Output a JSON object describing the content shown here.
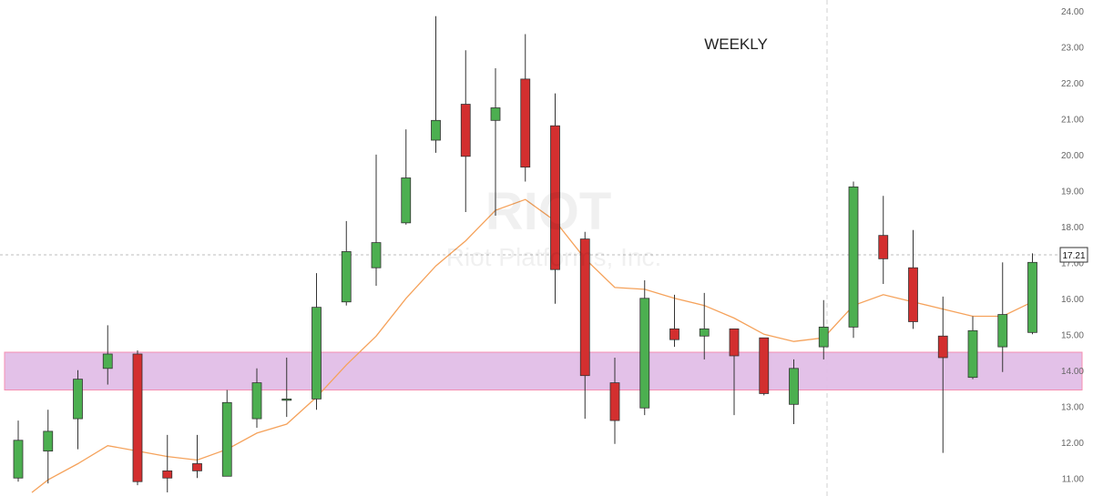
{
  "chart_data": {
    "type": "candlestick",
    "title": "WEEKLY",
    "watermark": {
      "ticker": "RIOT",
      "name": "Riot Platforms, Inc."
    },
    "ylim": [
      10.5,
      24.3
    ],
    "y_ticks": [
      "11.00",
      "12.00",
      "13.00",
      "14.00",
      "15.00",
      "16.00",
      "17.00",
      "18.00",
      "19.00",
      "20.00",
      "21.00",
      "22.00",
      "23.00",
      "24.00"
    ],
    "current_price": "17.21",
    "zone": {
      "low": 13.45,
      "high": 14.5
    },
    "colors": {
      "up": "#4caf50",
      "down": "#d32f2f",
      "ma": "#f5a25b",
      "zone": "#e1bee7",
      "zone_border": "#f48fb1",
      "price_line": "#bdbdbd"
    },
    "candles": [
      {
        "open": 11.0,
        "close": 12.05,
        "high": 12.6,
        "low": 10.9
      },
      {
        "open": 11.75,
        "close": 12.3,
        "high": 12.9,
        "low": 10.85
      },
      {
        "open": 12.65,
        "close": 13.75,
        "high": 14.0,
        "low": 11.8
      },
      {
        "open": 14.05,
        "close": 14.45,
        "high": 15.25,
        "low": 13.6
      },
      {
        "open": 14.45,
        "close": 10.9,
        "high": 14.55,
        "low": 10.8
      },
      {
        "open": 11.2,
        "close": 11.0,
        "high": 12.2,
        "low": 10.6
      },
      {
        "open": 11.4,
        "close": 11.2,
        "high": 12.2,
        "low": 11.0
      },
      {
        "open": 11.05,
        "close": 13.1,
        "high": 13.45,
        "low": 11.05
      },
      {
        "open": 12.65,
        "close": 13.65,
        "high": 14.05,
        "low": 12.4
      },
      {
        "open": 13.2,
        "close": 13.2,
        "high": 14.35,
        "low": 12.7
      },
      {
        "open": 13.2,
        "close": 15.75,
        "high": 16.7,
        "low": 12.9
      },
      {
        "open": 15.9,
        "close": 17.3,
        "high": 18.15,
        "low": 15.8
      },
      {
        "open": 16.85,
        "close": 17.55,
        "high": 20.0,
        "low": 16.35
      },
      {
        "open": 18.1,
        "close": 19.35,
        "high": 20.7,
        "low": 18.05
      },
      {
        "open": 20.4,
        "close": 20.95,
        "high": 23.85,
        "low": 20.05
      },
      {
        "open": 21.4,
        "close": 19.95,
        "high": 22.9,
        "low": 18.4
      },
      {
        "open": 20.95,
        "close": 21.3,
        "high": 22.4,
        "low": 18.3
      },
      {
        "open": 22.1,
        "close": 19.65,
        "high": 23.35,
        "low": 19.25
      },
      {
        "open": 20.8,
        "close": 16.8,
        "high": 21.7,
        "low": 15.85
      },
      {
        "open": 17.65,
        "close": 13.85,
        "high": 17.85,
        "low": 12.65
      },
      {
        "open": 13.65,
        "close": 12.6,
        "high": 14.35,
        "low": 11.95
      },
      {
        "open": 12.95,
        "close": 16.0,
        "high": 16.5,
        "low": 12.75
      },
      {
        "open": 15.15,
        "close": 14.85,
        "high": 16.1,
        "low": 14.65
      },
      {
        "open": 14.95,
        "close": 15.15,
        "high": 16.15,
        "low": 14.3
      },
      {
        "open": 15.15,
        "close": 14.4,
        "high": 15.15,
        "low": 12.75
      },
      {
        "open": 14.9,
        "close": 13.35,
        "high": 14.9,
        "low": 13.3
      },
      {
        "open": 13.05,
        "close": 14.05,
        "high": 14.3,
        "low": 12.5
      },
      {
        "open": 14.65,
        "close": 15.2,
        "high": 15.95,
        "low": 14.3
      },
      {
        "open": 15.2,
        "close": 19.1,
        "high": 19.25,
        "low": 14.9
      },
      {
        "open": 17.75,
        "close": 17.1,
        "high": 18.85,
        "low": 16.4
      },
      {
        "open": 16.85,
        "close": 15.35,
        "high": 17.9,
        "low": 15.15
      },
      {
        "open": 14.95,
        "close": 14.35,
        "high": 16.05,
        "low": 11.7
      },
      {
        "open": 13.8,
        "close": 15.1,
        "high": 15.5,
        "low": 13.75
      },
      {
        "open": 14.65,
        "close": 15.55,
        "high": 17.0,
        "low": 13.95
      },
      {
        "open": 15.05,
        "close": 17.0,
        "high": 17.25,
        "low": 15.0
      }
    ],
    "ma": [
      10.6,
      10.95,
      11.4,
      11.9,
      11.75,
      11.6,
      11.5,
      11.8,
      12.25,
      12.5,
      13.25,
      14.15,
      14.95,
      16.0,
      16.9,
      17.6,
      18.45,
      18.75,
      18.15,
      17.1,
      16.3,
      16.25,
      16.0,
      15.8,
      15.45,
      15.0,
      14.8,
      14.9,
      15.8,
      16.1,
      15.9,
      15.7,
      15.5,
      15.5,
      15.9
    ]
  }
}
